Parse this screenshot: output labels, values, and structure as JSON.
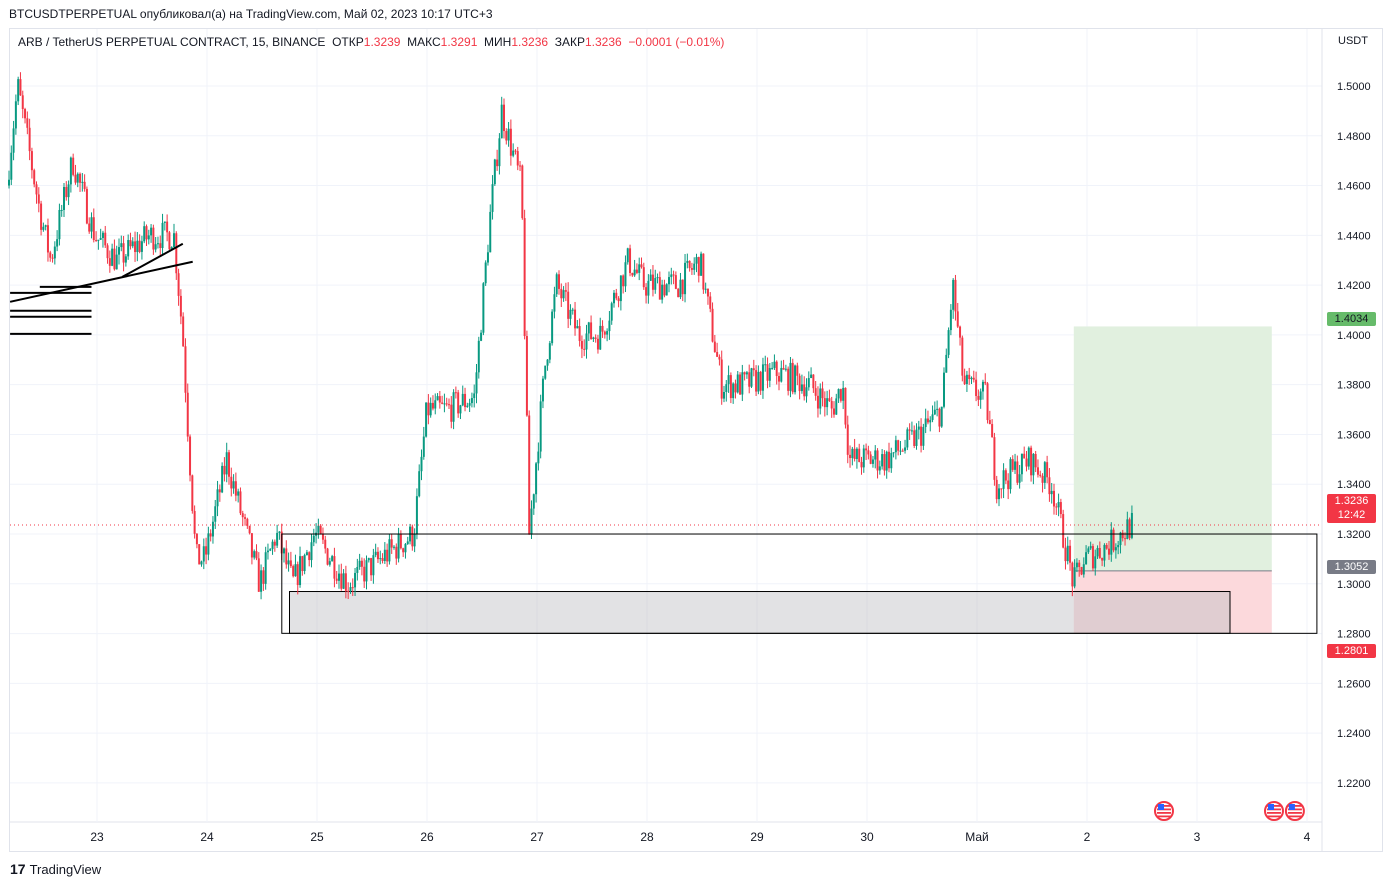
{
  "header": {
    "published": "BTCUSDTPERPETUAL опубликовал(а) на TradingView.com, Май 02, 2023 10:17 UTC+3"
  },
  "legend": {
    "symbol": "ARB / TetherUS PERPETUAL CONTRACT, 15, BINANCE",
    "open_label": "ОТКР",
    "open": "1.3239",
    "high_label": "МАКС",
    "high": "1.3291",
    "low_label": "МИН",
    "low": "1.3236",
    "close_label": "ЗАКР",
    "close": "1.3236",
    "change": "−0.0001 (−0.01%)"
  },
  "price_unit": "USDT",
  "tags": {
    "target": "1.4034",
    "last_price": "1.3236",
    "countdown": "12:42",
    "entry": "1.3052",
    "stop": "1.2801"
  },
  "brand": "TradingView",
  "colors": {
    "up": "#089981",
    "down": "#f23645",
    "target_zone": "#e1f0df",
    "stop_zone": "#fcd9dc",
    "grid": "#f0f3fa"
  },
  "chart_data": {
    "type": "candlestick",
    "interval": "15",
    "ylim": [
      1.2,
      1.51
    ],
    "y_ticks": [
      "1.2200",
      "1.2400",
      "1.2600",
      "1.2800",
      "1.3000",
      "1.3200",
      "1.3400",
      "1.3600",
      "1.3800",
      "1.4000",
      "1.4200",
      "1.4400",
      "1.4600",
      "1.4800",
      "1.5000"
    ],
    "x_ticks": [
      {
        "d": 23,
        "label": "23"
      },
      {
        "d": 24,
        "label": "24"
      },
      {
        "d": 25,
        "label": "25"
      },
      {
        "d": 26,
        "label": "26"
      },
      {
        "d": 27,
        "label": "27"
      },
      {
        "d": 28,
        "label": "28"
      },
      {
        "d": 29,
        "label": "29"
      },
      {
        "d": 30,
        "label": "30"
      },
      {
        "d": 31,
        "label": "Май"
      },
      {
        "d": 32,
        "label": "2"
      },
      {
        "d": 33,
        "label": "3"
      },
      {
        "d": 34,
        "label": "4"
      }
    ],
    "price_path": [
      [
        22.2,
        1.46
      ],
      [
        22.3,
        1.5
      ],
      [
        22.5,
        1.45
      ],
      [
        22.6,
        1.43
      ],
      [
        22.8,
        1.47
      ],
      [
        23.0,
        1.44
      ],
      [
        23.2,
        1.43
      ],
      [
        23.5,
        1.44
      ],
      [
        23.72,
        1.44
      ],
      [
        23.8,
        1.4
      ],
      [
        23.85,
        1.36
      ],
      [
        23.92,
        1.31
      ],
      [
        24.0,
        1.31
      ],
      [
        24.2,
        1.35
      ],
      [
        24.5,
        1.3
      ],
      [
        24.65,
        1.32
      ],
      [
        24.8,
        1.3
      ],
      [
        25.0,
        1.32
      ],
      [
        25.3,
        1.3
      ],
      [
        25.6,
        1.31
      ],
      [
        25.9,
        1.32
      ],
      [
        26.02,
        1.37
      ],
      [
        26.2,
        1.37
      ],
      [
        26.45,
        1.375
      ],
      [
        26.6,
        1.45
      ],
      [
        26.7,
        1.49
      ],
      [
        26.88,
        1.46
      ],
      [
        26.95,
        1.32
      ],
      [
        27.1,
        1.39
      ],
      [
        27.2,
        1.42
      ],
      [
        27.4,
        1.4
      ],
      [
        27.6,
        1.4
      ],
      [
        27.85,
        1.43
      ],
      [
        28.0,
        1.42
      ],
      [
        28.3,
        1.42
      ],
      [
        28.5,
        1.43
      ],
      [
        28.7,
        1.38
      ],
      [
        28.9,
        1.38
      ],
      [
        29.2,
        1.385
      ],
      [
        29.5,
        1.38
      ],
      [
        29.7,
        1.37
      ],
      [
        29.8,
        1.38
      ],
      [
        29.86,
        1.35
      ],
      [
        30.2,
        1.35
      ],
      [
        30.5,
        1.36
      ],
      [
        30.7,
        1.37
      ],
      [
        30.8,
        1.42
      ],
      [
        30.9,
        1.38
      ],
      [
        31.1,
        1.375
      ],
      [
        31.2,
        1.34
      ],
      [
        31.5,
        1.35
      ],
      [
        31.7,
        1.34
      ],
      [
        31.8,
        1.32
      ],
      [
        31.9,
        1.3
      ],
      [
        32.0,
        1.31
      ],
      [
        32.2,
        1.315
      ],
      [
        32.42,
        1.3236
      ]
    ],
    "drawings": {
      "long_position": {
        "start_d": 31.88,
        "end_d": 33.68,
        "entry": 1.3052,
        "target": 1.4034,
        "stop": 1.2801
      },
      "zone_outer": {
        "start_d": 24.68,
        "end_d": 34.09,
        "top": 1.32,
        "bottom": 1.2801
      },
      "zone_inner": {
        "start_d": 24.75,
        "end_d": 33.3,
        "top": 1.2969,
        "bottom": 1.2801
      },
      "trendlines": [
        [
          [
            22.21,
            1.4133
          ],
          [
            23.87,
            1.4294
          ]
        ],
        [
          [
            23.23,
            1.4233
          ],
          [
            23.78,
            1.4366
          ]
        ]
      ],
      "hlines": [
        [
          22.21,
          22.95,
          1.4169
        ],
        [
          22.21,
          22.95,
          1.4097
        ],
        [
          22.21,
          22.95,
          1.4073
        ],
        [
          22.21,
          22.95,
          1.4004
        ],
        [
          22.48,
          22.95,
          1.4193
        ]
      ],
      "last_price": 1.3236,
      "events_d": [
        32.7,
        33.7,
        33.89
      ]
    }
  }
}
